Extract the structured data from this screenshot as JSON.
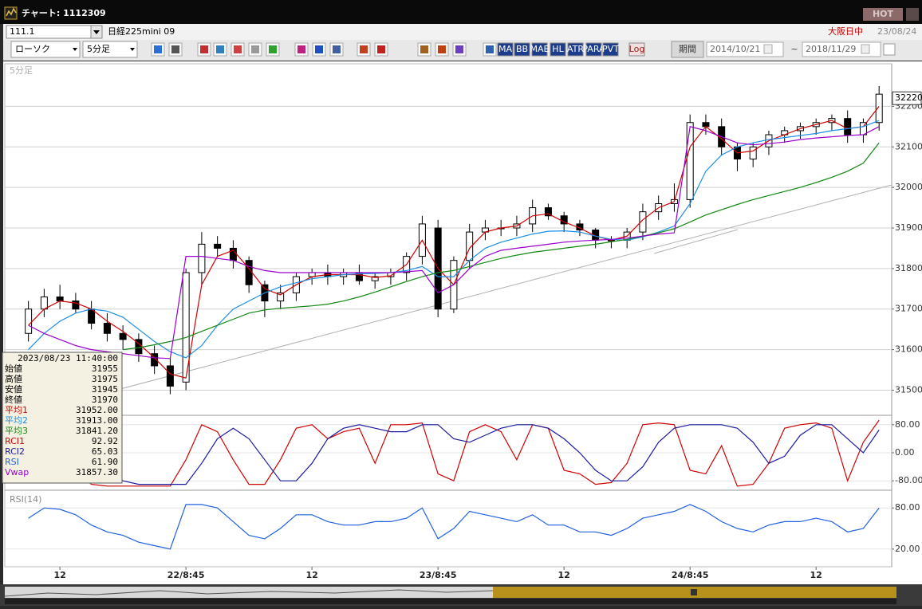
{
  "window": {
    "title": "チャート: 1112309",
    "hot": "HOT"
  },
  "header": {
    "code": "111.1",
    "name": "日経225mini 09",
    "market": "大阪日中",
    "date": "23/08/24"
  },
  "toolbar": {
    "chart_style": "ローソク",
    "interval": "5分足",
    "buttons": [
      "MA",
      "BB",
      "MAE",
      "HL",
      "ATR",
      "PARA",
      "PVT",
      "Log"
    ],
    "period": "期間",
    "from": "2014/10/21",
    "separator": "~",
    "to": "2018/11/29"
  },
  "time_axis": {
    "x": [
      1.5,
      2.5,
      3.5,
      4.5,
      5.5,
      6.5,
      7.5,
      8.5,
      9.5,
      10.5,
      11.5,
      12.5,
      13.5,
      14.5,
      15.5,
      16.5,
      17.5,
      18.5,
      19.5,
      20.5,
      21.5,
      22.5,
      23.5,
      24.5,
      25.5,
      26.5,
      27.5,
      28.5,
      29.5,
      30.5,
      31.5,
      32.5,
      33.5,
      34.5,
      35.5,
      36.5,
      37.5,
      38.5,
      39.5,
      40.5,
      41.5,
      42.5,
      43.5,
      44.5,
      45.5,
      46.5,
      47.5,
      48.5,
      49.5,
      50.5,
      51.5,
      52.5,
      53.5,
      54.5,
      55.5
    ],
    "xlim": [
      0,
      56.3
    ],
    "xticks": [
      {
        "value": 3.5,
        "label": "12"
      },
      {
        "value": 11.5,
        "label": "22/8:45"
      },
      {
        "value": 19.5,
        "label": "12"
      },
      {
        "value": 27.5,
        "label": "23/8:45"
      },
      {
        "value": 35.5,
        "label": "12"
      },
      {
        "value": 43.5,
        "label": "24/8:45"
      },
      {
        "value": 51.5,
        "label": "12"
      }
    ]
  },
  "chart_data": [
    {
      "type": "candlestick",
      "label": "5分足",
      "open": [
        31640,
        31700,
        31730,
        31720,
        31700,
        31665,
        31640,
        31625,
        31590,
        31560,
        31520,
        31790,
        31860,
        31850,
        31820,
        31760,
        31720,
        31740,
        31780,
        31790,
        31780,
        31790,
        31770,
        31780,
        31790,
        31830,
        31900,
        31700,
        31820,
        31890,
        31900,
        31900,
        31910,
        31950,
        31930,
        31910,
        31895,
        31870,
        31870,
        31890,
        31940,
        31960,
        31970,
        32160,
        32150,
        32100,
        32070,
        32100,
        32130,
        32140,
        32150,
        32160,
        32170,
        32130,
        32160
      ],
      "high": [
        31720,
        31750,
        31760,
        31740,
        31720,
        31690,
        31660,
        31640,
        31610,
        31580,
        31800,
        31890,
        31880,
        31870,
        31830,
        31770,
        31760,
        31790,
        31800,
        31810,
        31800,
        31810,
        31790,
        31800,
        31840,
        31930,
        31920,
        31830,
        31910,
        31920,
        31920,
        31930,
        31970,
        31960,
        31940,
        31920,
        31900,
        31880,
        31900,
        31960,
        31980,
        32010,
        32180,
        32180,
        32170,
        32110,
        32110,
        32140,
        32150,
        32160,
        32170,
        32180,
        32190,
        32170,
        32250
      ],
      "low": [
        31620,
        31680,
        31700,
        31690,
        31650,
        31620,
        31600,
        31570,
        31540,
        31490,
        31500,
        31760,
        31830,
        31800,
        31740,
        31680,
        31700,
        31720,
        31760,
        31760,
        31760,
        31760,
        31750,
        31760,
        31770,
        31810,
        31680,
        31690,
        31800,
        31870,
        31880,
        31880,
        31890,
        31920,
        31890,
        31880,
        31850,
        31850,
        31850,
        31870,
        31920,
        31940,
        31950,
        32130,
        32080,
        32040,
        32050,
        32080,
        32110,
        32120,
        32130,
        32140,
        32110,
        32110,
        32140
      ],
      "close": [
        31700,
        31730,
        31720,
        31700,
        31665,
        31640,
        31625,
        31590,
        31560,
        31510,
        31790,
        31860,
        31850,
        31820,
        31760,
        31720,
        31740,
        31780,
        31790,
        31780,
        31790,
        31770,
        31780,
        31790,
        31830,
        31910,
        31700,
        31820,
        31890,
        31900,
        31900,
        31910,
        31950,
        31930,
        31910,
        31895,
        31870,
        31870,
        31890,
        31940,
        31960,
        31970,
        32160,
        32150,
        32100,
        32070,
        32100,
        32130,
        32140,
        32150,
        32160,
        32170,
        32130,
        32160,
        32230
      ],
      "up_color": "#ffffff",
      "down_color": "#000000",
      "series": [
        {
          "name": "平均1",
          "color": "#d00000",
          "values": [
            31660,
            31700,
            31720,
            31715,
            31700,
            31670,
            31645,
            31615,
            31580,
            31540,
            31530,
            31760,
            31830,
            31845,
            31800,
            31750,
            31735,
            31760,
            31780,
            31785,
            31785,
            31785,
            31778,
            31782,
            31810,
            31870,
            31800,
            31760,
            31850,
            31890,
            31900,
            31905,
            31930,
            31935,
            31915,
            31900,
            31880,
            31870,
            31880,
            31920,
            31950,
            31965,
            32100,
            32150,
            32120,
            32085,
            32090,
            32115,
            32130,
            32145,
            32155,
            32165,
            32145,
            32150,
            32200
          ]
        },
        {
          "name": "平均2",
          "color": "#1c8ee6",
          "values": [
            31600,
            31640,
            31670,
            31690,
            31700,
            31695,
            31680,
            31650,
            31620,
            31595,
            31580,
            31610,
            31660,
            31700,
            31720,
            31740,
            31755,
            31765,
            31775,
            31780,
            31785,
            31787,
            31788,
            31790,
            31795,
            31805,
            31780,
            31780,
            31820,
            31850,
            31865,
            31875,
            31885,
            31892,
            31893,
            31890,
            31880,
            31872,
            31870,
            31878,
            31890,
            31905,
            31960,
            32040,
            32080,
            32100,
            32110,
            32118,
            32123,
            32128,
            32133,
            32140,
            32145,
            32150,
            32165
          ]
        },
        {
          "name": "平均3",
          "color": "#118811",
          "values": [
            null,
            null,
            null,
            null,
            null,
            null,
            31600,
            31605,
            31612,
            31620,
            31630,
            31645,
            31660,
            31675,
            31690,
            31698,
            31702,
            31705,
            31708,
            31712,
            31720,
            31730,
            31742,
            31755,
            31768,
            31780,
            31790,
            31795,
            31805,
            31815,
            31825,
            31833,
            31840,
            31845,
            31850,
            31855,
            31860,
            31866,
            31872,
            31880,
            31888,
            31898,
            31915,
            31932,
            31945,
            31958,
            31970,
            31980,
            31990,
            32000,
            32012,
            32025,
            32040,
            32060,
            32110
          ]
        },
        {
          "name": "Vwap",
          "color": "#9900cc",
          "values": [
            31660,
            31640,
            31625,
            31610,
            31600,
            31595,
            31590,
            31585,
            31580,
            31578,
            31830,
            31830,
            31825,
            31820,
            31805,
            31795,
            31790,
            31790,
            31790,
            31790,
            31790,
            31790,
            31790,
            31790,
            31792,
            31795,
            31740,
            31760,
            31800,
            31830,
            31845,
            31850,
            31855,
            31860,
            31865,
            31868,
            31870,
            31872,
            31875,
            31880,
            31885,
            31888,
            32150,
            32140,
            32125,
            32110,
            32105,
            32108,
            32112,
            32118,
            32122,
            32125,
            32128,
            32130,
            32150
          ]
        }
      ],
      "ylim": [
        31440,
        32305
      ],
      "yticks": [
        31500,
        31600,
        31700,
        31800,
        31900,
        32000,
        32100,
        32200
      ],
      "last_price": 32220
    },
    {
      "type": "line",
      "series": [
        {
          "name": "RCI1",
          "color": "#d00000",
          "values": [
            60,
            80,
            40,
            -40,
            -90,
            -95,
            -95,
            -95,
            -95,
            -95,
            -20,
            80,
            60,
            -20,
            -90,
            -90,
            -20,
            70,
            80,
            40,
            60,
            70,
            -30,
            80,
            80,
            85,
            -60,
            -80,
            60,
            80,
            60,
            -20,
            80,
            70,
            -50,
            -60,
            -90,
            -85,
            -30,
            80,
            85,
            80,
            -50,
            -60,
            20,
            -95,
            -90,
            -30,
            70,
            80,
            85,
            70,
            -80,
            30,
            92.92
          ]
        },
        {
          "name": "RCI2",
          "color": "#1a1aa0",
          "values": [
            0,
            20,
            30,
            10,
            -20,
            -50,
            -80,
            -90,
            -90,
            -90,
            -90,
            -30,
            40,
            70,
            40,
            -20,
            -80,
            -80,
            -30,
            40,
            70,
            80,
            70,
            60,
            60,
            80,
            80,
            40,
            30,
            50,
            70,
            80,
            80,
            70,
            40,
            0,
            -50,
            -80,
            -80,
            -40,
            30,
            70,
            80,
            80,
            80,
            70,
            30,
            -30,
            -10,
            50,
            80,
            80,
            40,
            0,
            65.03
          ]
        }
      ],
      "ylim": [
        -100,
        100
      ],
      "yticks": [
        {
          "value": 80,
          "label": "80.00"
        },
        {
          "value": 0,
          "label": "0.00"
        },
        {
          "value": -80,
          "label": "-80.00"
        }
      ]
    },
    {
      "type": "line",
      "label": "RSI(14)",
      "series": [
        {
          "name": "RSI",
          "color": "#2060e0",
          "values": [
            65,
            80,
            78,
            70,
            55,
            45,
            40,
            30,
            25,
            20,
            85,
            85,
            80,
            60,
            40,
            35,
            50,
            70,
            70,
            60,
            55,
            55,
            60,
            60,
            65,
            80,
            35,
            50,
            75,
            70,
            65,
            60,
            70,
            55,
            55,
            45,
            45,
            40,
            50,
            65,
            70,
            75,
            85,
            75,
            60,
            50,
            45,
            55,
            60,
            60,
            65,
            60,
            45,
            50,
            80
          ]
        }
      ],
      "ylim": [
        0,
        100
      ],
      "yticks": [
        {
          "value": 80,
          "label": "80.00"
        },
        {
          "value": 20,
          "label": "20.00"
        }
      ]
    }
  ],
  "info": {
    "time": "2023/08/23 11:40:00",
    "ohlc": [
      {
        "label": "始値",
        "value": "31955"
      },
      {
        "label": "高値",
        "value": "31975"
      },
      {
        "label": "安値",
        "value": "31945"
      },
      {
        "label": "終値",
        "value": "31970"
      }
    ],
    "values": [
      "31952.00",
      "31913.00",
      "31841.20",
      "92.92",
      "65.03",
      "61.90",
      "31857.30"
    ]
  }
}
